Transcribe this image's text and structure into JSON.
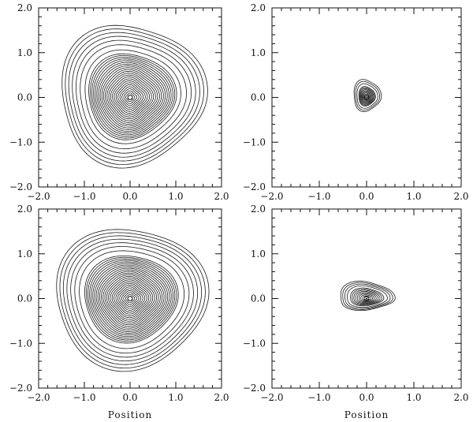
{
  "chart_data": [
    {
      "type": "contour",
      "panel": "top-left",
      "xlim": [
        -2.0,
        2.0
      ],
      "ylim": [
        -2.0,
        2.0
      ],
      "x_ticks": [
        "-2.0",
        "-1.0",
        "0.0",
        "1.0",
        "2.0"
      ],
      "y_ticks": [
        "-2.0",
        "-1.0",
        "0.0",
        "1.0",
        "2.0"
      ],
      "xlabel": "",
      "ylabel": "",
      "center": [
        0.0,
        0.0
      ],
      "outer_extent": {
        "x": [
          -1.55,
          1.6
        ],
        "y": [
          -1.5,
          1.65
        ]
      },
      "levels": 30
    },
    {
      "type": "contour",
      "panel": "top-right",
      "xlim": [
        -2.0,
        2.0
      ],
      "ylim": [
        -2.0,
        2.0
      ],
      "x_ticks": [
        "-2.0",
        "-1.0",
        "0.0",
        "1.0",
        "2.0"
      ],
      "y_ticks": [
        "-2.0",
        "-1.0",
        "0.0",
        "1.0",
        "2.0"
      ],
      "xlabel": "",
      "ylabel": "",
      "center": [
        0.0,
        0.0
      ],
      "outer_extent": {
        "x": [
          -0.3,
          0.3
        ],
        "y": [
          -0.3,
          0.4
        ]
      },
      "levels": 14
    },
    {
      "type": "contour",
      "panel": "bottom-left",
      "xlim": [
        -2.0,
        2.0
      ],
      "ylim": [
        -2.0,
        2.0
      ],
      "x_ticks": [
        "-2.0",
        "-1.0",
        "0.0",
        "1.0",
        "2.0"
      ],
      "y_ticks": [
        "-2.0",
        "-1.0",
        "0.0",
        "1.0",
        "2.0"
      ],
      "xlabel": "Position",
      "ylabel": "",
      "center": [
        0.0,
        0.0
      ],
      "outer_extent": {
        "x": [
          -1.65,
          1.65
        ],
        "y": [
          -1.55,
          1.6
        ]
      },
      "levels": 32
    },
    {
      "type": "contour",
      "panel": "bottom-right",
      "xlim": [
        -2.0,
        2.0
      ],
      "ylim": [
        -2.0,
        2.0
      ],
      "x_ticks": [
        "-2.0",
        "-1.0",
        "0.0",
        "1.0",
        "2.0"
      ],
      "y_ticks": [
        "-2.0",
        "-1.0",
        "0.0",
        "1.0",
        "2.0"
      ],
      "xlabel": "Position",
      "ylabel": "",
      "center": [
        0.0,
        0.0
      ],
      "outer_extent": {
        "x": [
          -0.6,
          0.55
        ],
        "y": [
          -0.3,
          0.45
        ]
      },
      "levels": 14
    }
  ]
}
